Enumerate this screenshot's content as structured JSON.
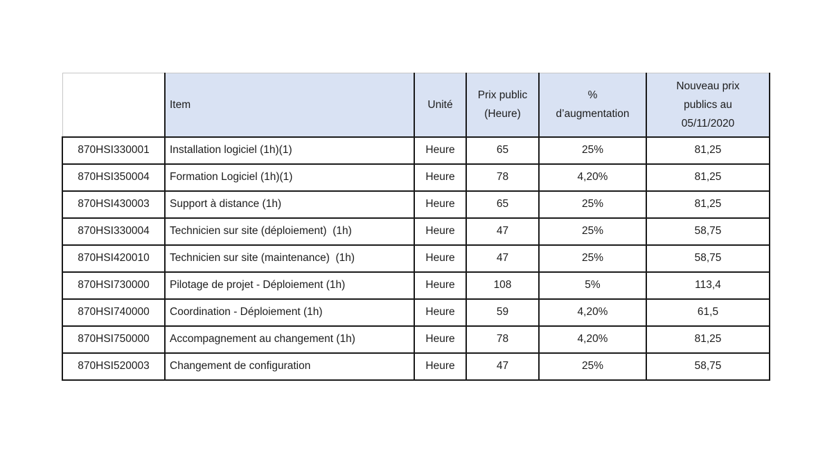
{
  "table": {
    "headers": {
      "code": "",
      "item": "Item",
      "unit": "Unité",
      "price": "Prix public\n(Heure)",
      "pct": "%\nd’augmentation",
      "new_price": "Nouveau prix\npublics au\n05/11/2020"
    },
    "rows": [
      {
        "code": "870HSI330001",
        "item": "Installation logiciel (1h)(1)",
        "unit": "Heure",
        "price": "65",
        "pct": "25%",
        "new_price": "81,25"
      },
      {
        "code": "870HSI350004",
        "item": "Formation Logiciel (1h)(1)",
        "unit": "Heure",
        "price": "78",
        "pct": "4,20%",
        "new_price": "81,25"
      },
      {
        "code": "870HSI430003",
        "item": "Support à distance (1h)",
        "unit": "Heure",
        "price": "65",
        "pct": "25%",
        "new_price": "81,25"
      },
      {
        "code": "870HSI330004",
        "item": "Technicien sur site (déploiement)  (1h)",
        "unit": "Heure",
        "price": "47",
        "pct": "25%",
        "new_price": "58,75"
      },
      {
        "code": "870HSI420010",
        "item": "Technicien sur site (maintenance)  (1h)",
        "unit": "Heure",
        "price": "47",
        "pct": "25%",
        "new_price": "58,75"
      },
      {
        "code": "870HSI730000",
        "item": "Pilotage de projet - Déploiement (1h)",
        "unit": "Heure",
        "price": "108",
        "pct": "5%",
        "new_price": "113,4"
      },
      {
        "code": "870HSI740000",
        "item": "Coordination - Déploiement (1h)",
        "unit": "Heure",
        "price": "59",
        "pct": "4,20%",
        "new_price": "61,5"
      },
      {
        "code": "870HSI750000",
        "item": "Accompagnement au changement (1h)",
        "unit": "Heure",
        "price": "78",
        "pct": "4,20%",
        "new_price": "81,25"
      },
      {
        "code": "870HSI520003",
        "item": "Changement de configuration",
        "unit": "Heure",
        "price": "47",
        "pct": "25%",
        "new_price": "58,75"
      }
    ],
    "colors": {
      "header_fill": "#D9E2F3",
      "border": "#191919",
      "gridline": "#C6C6C6",
      "text": "#1C1C1C"
    }
  }
}
